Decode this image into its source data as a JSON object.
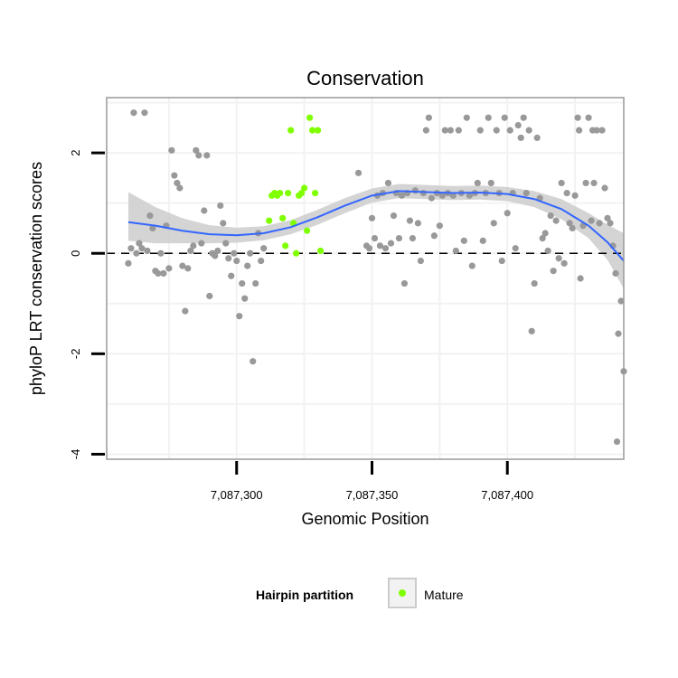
{
  "chart_data": {
    "type": "scatter",
    "title": "Conservation",
    "xlabel": "Genomic Position",
    "ylabel": "phyloP LRT conservation scores",
    "xlim": [
      7087252,
      7087443
    ],
    "ylim": [
      -4.1,
      3.1
    ],
    "x_ticks": [
      {
        "value": 7087300,
        "label": "7,087,300"
      },
      {
        "value": 7087350,
        "label": "7,087,350"
      },
      {
        "value": 7087400,
        "label": "7,087,400"
      }
    ],
    "y_ticks": [
      {
        "value": -4,
        "label": "-4"
      },
      {
        "value": -2,
        "label": "-2"
      },
      {
        "value": 0,
        "label": "0"
      },
      {
        "value": 2,
        "label": "2"
      }
    ],
    "reference_line_y": 0,
    "legend": {
      "title": "Hairpin partition",
      "entries": [
        {
          "label": "Mature",
          "color": "#7fff00"
        }
      ],
      "position": "bottom"
    },
    "colors": {
      "other_points": "#999999",
      "mature_points": "#7fff00",
      "smooth_line": "#3366ff",
      "confidence_band": "#cccccc",
      "grid": "#f2f2f2",
      "panel_border": "#999999"
    },
    "series": [
      {
        "name": "Other",
        "points": [
          [
            7087262,
            2.8
          ],
          [
            7087266,
            2.8
          ],
          [
            7087260,
            -0.2
          ],
          [
            7087261,
            0.1
          ],
          [
            7087263,
            0.0
          ],
          [
            7087264,
            0.2
          ],
          [
            7087265,
            0.1
          ],
          [
            7087267,
            0.05
          ],
          [
            7087268,
            0.75
          ],
          [
            7087269,
            0.5
          ],
          [
            7087270,
            -0.35
          ],
          [
            7087271,
            -0.4
          ],
          [
            7087272,
            0.0
          ],
          [
            7087273,
            -0.4
          ],
          [
            7087274,
            0.55
          ],
          [
            7087275,
            -0.3
          ],
          [
            7087276,
            2.05
          ],
          [
            7087277,
            1.55
          ],
          [
            7087278,
            1.4
          ],
          [
            7087279,
            1.3
          ],
          [
            7087280,
            -0.25
          ],
          [
            7087281,
            -1.15
          ],
          [
            7087282,
            -0.3
          ],
          [
            7087283,
            0.05
          ],
          [
            7087284,
            0.15
          ],
          [
            7087285,
            2.05
          ],
          [
            7087286,
            1.95
          ],
          [
            7087287,
            0.2
          ],
          [
            7087288,
            0.85
          ],
          [
            7087289,
            1.95
          ],
          [
            7087290,
            -0.85
          ],
          [
            7087291,
            0.0
          ],
          [
            7087292,
            -0.05
          ],
          [
            7087293,
            0.05
          ],
          [
            7087294,
            0.95
          ],
          [
            7087295,
            0.6
          ],
          [
            7087296,
            0.2
          ],
          [
            7087297,
            -0.1
          ],
          [
            7087298,
            -0.45
          ],
          [
            7087299,
            0.0
          ],
          [
            7087300,
            -0.15
          ],
          [
            7087301,
            -1.25
          ],
          [
            7087302,
            -0.6
          ],
          [
            7087303,
            -0.9
          ],
          [
            7087304,
            -0.25
          ],
          [
            7087305,
            0.0
          ],
          [
            7087306,
            -2.15
          ],
          [
            7087307,
            -0.6
          ],
          [
            7087308,
            0.4
          ],
          [
            7087309,
            -0.15
          ],
          [
            7087310,
            0.1
          ],
          [
            7087345,
            1.6
          ],
          [
            7087348,
            0.15
          ],
          [
            7087349,
            0.1
          ],
          [
            7087350,
            0.7
          ],
          [
            7087351,
            0.3
          ],
          [
            7087352,
            1.15
          ],
          [
            7087353,
            0.15
          ],
          [
            7087354,
            1.2
          ],
          [
            7087355,
            0.1
          ],
          [
            7087356,
            1.4
          ],
          [
            7087357,
            0.2
          ],
          [
            7087358,
            0.75
          ],
          [
            7087359,
            1.2
          ],
          [
            7087360,
            0.3
          ],
          [
            7087361,
            1.15
          ],
          [
            7087362,
            -0.6
          ],
          [
            7087363,
            1.2
          ],
          [
            7087364,
            0.65
          ],
          [
            7087365,
            0.3
          ],
          [
            7087366,
            1.25
          ],
          [
            7087367,
            0.6
          ],
          [
            7087368,
            -0.15
          ],
          [
            7087369,
            1.2
          ],
          [
            7087370,
            2.45
          ],
          [
            7087371,
            2.7
          ],
          [
            7087372,
            1.1
          ],
          [
            7087373,
            0.35
          ],
          [
            7087374,
            1.2
          ],
          [
            7087375,
            0.55
          ],
          [
            7087376,
            1.15
          ],
          [
            7087377,
            2.45
          ],
          [
            7087378,
            1.2
          ],
          [
            7087379,
            2.45
          ],
          [
            7087380,
            1.15
          ],
          [
            7087381,
            0.05
          ],
          [
            7087382,
            2.45
          ],
          [
            7087383,
            1.2
          ],
          [
            7087384,
            0.25
          ],
          [
            7087385,
            2.7
          ],
          [
            7087386,
            1.15
          ],
          [
            7087387,
            -0.25
          ],
          [
            7087388,
            1.2
          ],
          [
            7087389,
            1.4
          ],
          [
            7087390,
            2.45
          ],
          [
            7087391,
            0.25
          ],
          [
            7087392,
            1.2
          ],
          [
            7087393,
            2.7
          ],
          [
            7087394,
            1.4
          ],
          [
            7087395,
            0.6
          ],
          [
            7087396,
            2.45
          ],
          [
            7087397,
            1.2
          ],
          [
            7087398,
            -0.15
          ],
          [
            7087399,
            2.7
          ],
          [
            7087400,
            0.8
          ],
          [
            7087401,
            2.45
          ],
          [
            7087402,
            1.2
          ],
          [
            7087403,
            0.1
          ],
          [
            7087404,
            2.55
          ],
          [
            7087405,
            2.3
          ],
          [
            7087406,
            2.7
          ],
          [
            7087407,
            1.2
          ],
          [
            7087408,
            2.45
          ],
          [
            7087409,
            -1.55
          ],
          [
            7087410,
            -0.6
          ],
          [
            7087411,
            2.3
          ],
          [
            7087412,
            1.1
          ],
          [
            7087413,
            0.3
          ],
          [
            7087414,
            0.4
          ],
          [
            7087415,
            0.05
          ],
          [
            7087416,
            0.75
          ],
          [
            7087417,
            -0.35
          ],
          [
            7087418,
            0.65
          ],
          [
            7087419,
            -0.1
          ],
          [
            7087420,
            1.4
          ],
          [
            7087421,
            -0.2
          ],
          [
            7087422,
            1.2
          ],
          [
            7087423,
            0.6
          ],
          [
            7087424,
            0.5
          ],
          [
            7087425,
            1.15
          ],
          [
            7087426,
            2.7
          ],
          [
            7087427,
            -0.5
          ],
          [
            7087428,
            0.55
          ],
          [
            7087429,
            1.4
          ],
          [
            7087430,
            2.7
          ],
          [
            7087431,
            0.65
          ],
          [
            7087432,
            1.4
          ],
          [
            7087433,
            2.45
          ],
          [
            7087434,
            0.6
          ],
          [
            7087435,
            2.45
          ],
          [
            7087436,
            1.3
          ],
          [
            7087437,
            0.7
          ],
          [
            7087438,
            0.6
          ],
          [
            7087439,
            0.15
          ],
          [
            7087440,
            -0.4
          ],
          [
            7087441,
            -1.6
          ],
          [
            7087442,
            -0.95
          ],
          [
            7087443,
            -2.35
          ],
          [
            7087440.5,
            -3.75
          ],
          [
            7087426.5,
            2.45
          ],
          [
            7087431.5,
            2.45
          ]
        ]
      },
      {
        "name": "Mature",
        "points": [
          [
            7087312,
            0.65
          ],
          [
            7087313,
            1.15
          ],
          [
            7087314,
            1.2
          ],
          [
            7087315,
            1.15
          ],
          [
            7087316,
            1.2
          ],
          [
            7087317,
            0.7
          ],
          [
            7087318,
            0.15
          ],
          [
            7087319,
            1.2
          ],
          [
            7087320,
            2.45
          ],
          [
            7087321,
            0.6
          ],
          [
            7087322,
            0.0
          ],
          [
            7087323,
            1.15
          ],
          [
            7087324,
            1.2
          ],
          [
            7087325,
            1.3
          ],
          [
            7087326,
            0.45
          ],
          [
            7087327,
            2.7
          ],
          [
            7087328,
            2.45
          ],
          [
            7087329,
            1.2
          ],
          [
            7087330,
            2.45
          ],
          [
            7087331,
            0.05
          ]
        ]
      }
    ],
    "smooth": {
      "x": [
        7087260,
        7087270,
        7087280,
        7087290,
        7087300,
        7087310,
        7087320,
        7087330,
        7087340,
        7087350,
        7087360,
        7087370,
        7087380,
        7087390,
        7087400,
        7087410,
        7087420,
        7087430,
        7087437,
        7087443
      ],
      "y": [
        0.62,
        0.55,
        0.45,
        0.38,
        0.36,
        0.4,
        0.52,
        0.72,
        0.95,
        1.15,
        1.24,
        1.22,
        1.2,
        1.21,
        1.18,
        1.08,
        0.88,
        0.55,
        0.22,
        -0.15
      ],
      "ymin": [
        0.25,
        0.2,
        0.2,
        0.2,
        0.21,
        0.26,
        0.38,
        0.57,
        0.8,
        1.01,
        1.1,
        1.08,
        1.06,
        1.07,
        1.04,
        0.92,
        0.68,
        0.3,
        -0.13,
        -0.7
      ],
      "ymax": [
        1.22,
        0.92,
        0.7,
        0.56,
        0.51,
        0.54,
        0.66,
        0.87,
        1.1,
        1.29,
        1.38,
        1.36,
        1.34,
        1.35,
        1.32,
        1.24,
        1.08,
        0.8,
        0.57,
        0.4
      ]
    }
  }
}
